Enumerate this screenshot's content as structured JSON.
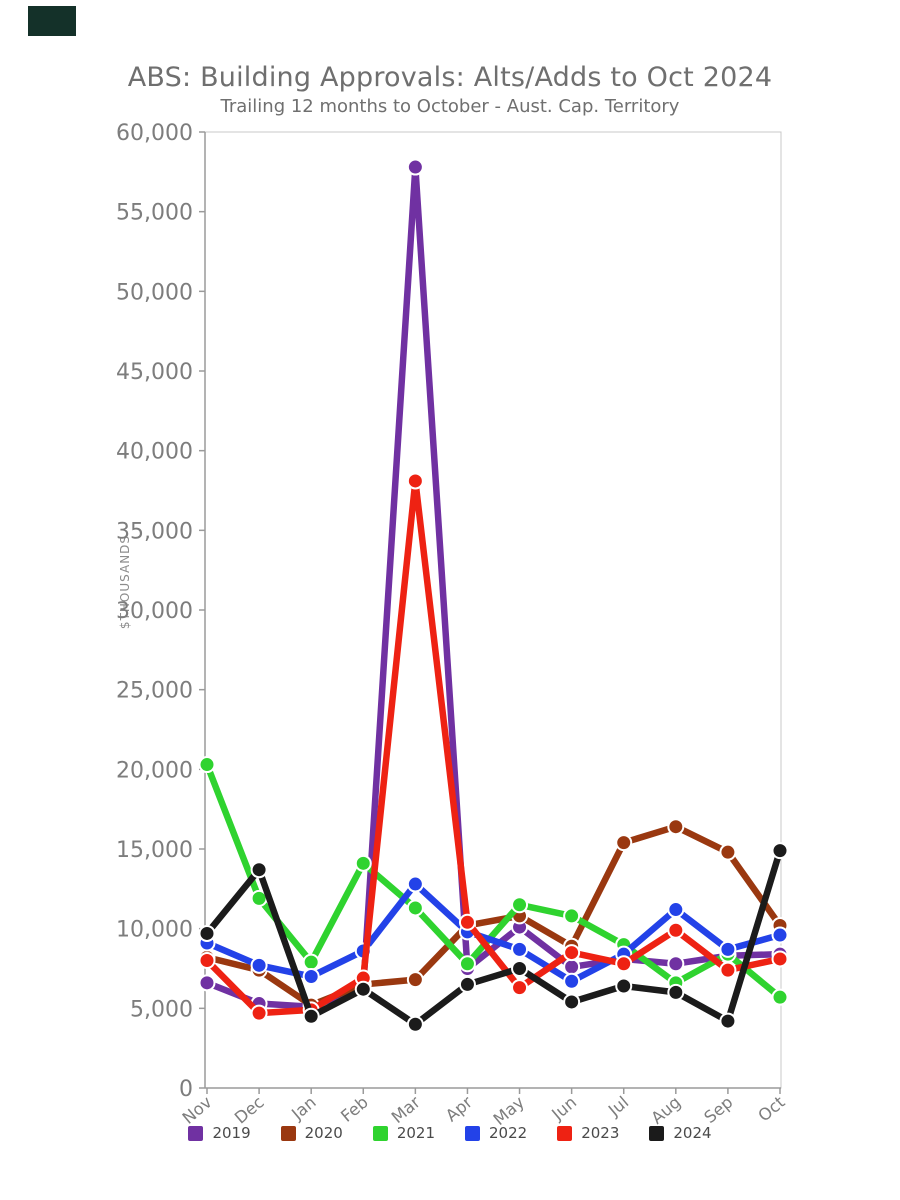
{
  "page": {
    "background_color": "#ffffff",
    "corner_logo_color": "#143129",
    "text_color": "#6f6f6f",
    "tick_label_color": "#7d7d7d"
  },
  "chart_data": {
    "type": "line",
    "title": "ABS: Building Approvals: Alts/Adds to Oct 2024",
    "subtitle": "Trailing 12 months to October - Aust. Cap. Territory",
    "ylabel": "$THOUSANDS",
    "ylim": [
      0,
      60000
    ],
    "ytick_step": 5000,
    "grid": false,
    "legend_position": "bottom",
    "y_tick_labels": [
      "0",
      "5,000",
      "10,000",
      "15,000",
      "20,000",
      "25,000",
      "30,000",
      "35,000",
      "40,000",
      "45,000",
      "50,000",
      "55,000",
      "60,000"
    ],
    "categories": [
      "Nov",
      "Dec",
      "Jan",
      "Feb",
      "Mar",
      "Apr",
      "May",
      "Jun",
      "Jul",
      "Aug",
      "Sep",
      "Oct"
    ],
    "series": [
      {
        "name": "2019",
        "color": "#7031a2",
        "values": [
          6600,
          5300,
          5100,
          6300,
          57800,
          7500,
          10100,
          7600,
          8100,
          7800,
          8300,
          8400
        ]
      },
      {
        "name": "2020",
        "color": "#9a3810",
        "values": [
          8200,
          7400,
          5200,
          6500,
          6800,
          10200,
          10800,
          8900,
          15400,
          16400,
          14800,
          10200
        ]
      },
      {
        "name": "2021",
        "color": "#2fd32f",
        "values": [
          20300,
          11900,
          7900,
          14100,
          11300,
          7800,
          11500,
          10800,
          9000,
          6600,
          8400,
          5700
        ]
      },
      {
        "name": "2022",
        "color": "#2342e8",
        "values": [
          9100,
          7700,
          7000,
          8600,
          12800,
          9800,
          8700,
          6700,
          8400,
          11200,
          8700,
          9600
        ]
      },
      {
        "name": "2023",
        "color": "#ee2213",
        "values": [
          8000,
          4700,
          4900,
          6900,
          38100,
          10400,
          6300,
          8500,
          7800,
          9900,
          7400,
          8100
        ]
      },
      {
        "name": "2024",
        "color": "#1b1b1b",
        "values": [
          9700,
          13700,
          4500,
          6200,
          4000,
          6500,
          7500,
          5400,
          6400,
          6000,
          4200,
          14900
        ]
      }
    ]
  }
}
